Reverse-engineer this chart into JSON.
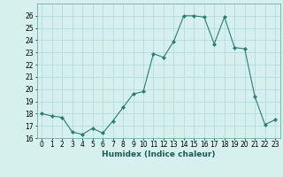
{
  "x": [
    0,
    1,
    2,
    3,
    4,
    5,
    6,
    7,
    8,
    9,
    10,
    11,
    12,
    13,
    14,
    15,
    16,
    17,
    18,
    19,
    20,
    21,
    22,
    23
  ],
  "y": [
    18.0,
    17.8,
    17.7,
    16.5,
    16.3,
    16.8,
    16.4,
    17.4,
    18.5,
    19.6,
    19.8,
    22.9,
    22.6,
    23.9,
    26.0,
    26.0,
    25.9,
    23.7,
    25.9,
    23.4,
    23.3,
    19.4,
    17.1,
    17.5
  ],
  "line_color": "#2e7d6e",
  "marker": "D",
  "marker_size": 2,
  "bg_color": "#d6f0ed",
  "grid_color": "#b0d8d2",
  "xlabel": "Humidex (Indice chaleur)",
  "ylim": [
    16,
    27
  ],
  "xlim": [
    -0.5,
    23.5
  ],
  "yticks": [
    16,
    17,
    18,
    19,
    20,
    21,
    22,
    23,
    24,
    25,
    26
  ],
  "xticks": [
    0,
    1,
    2,
    3,
    4,
    5,
    6,
    7,
    8,
    9,
    10,
    11,
    12,
    13,
    14,
    15,
    16,
    17,
    18,
    19,
    20,
    21,
    22,
    23
  ],
  "tick_fontsize": 5.5,
  "label_fontsize": 6.5
}
